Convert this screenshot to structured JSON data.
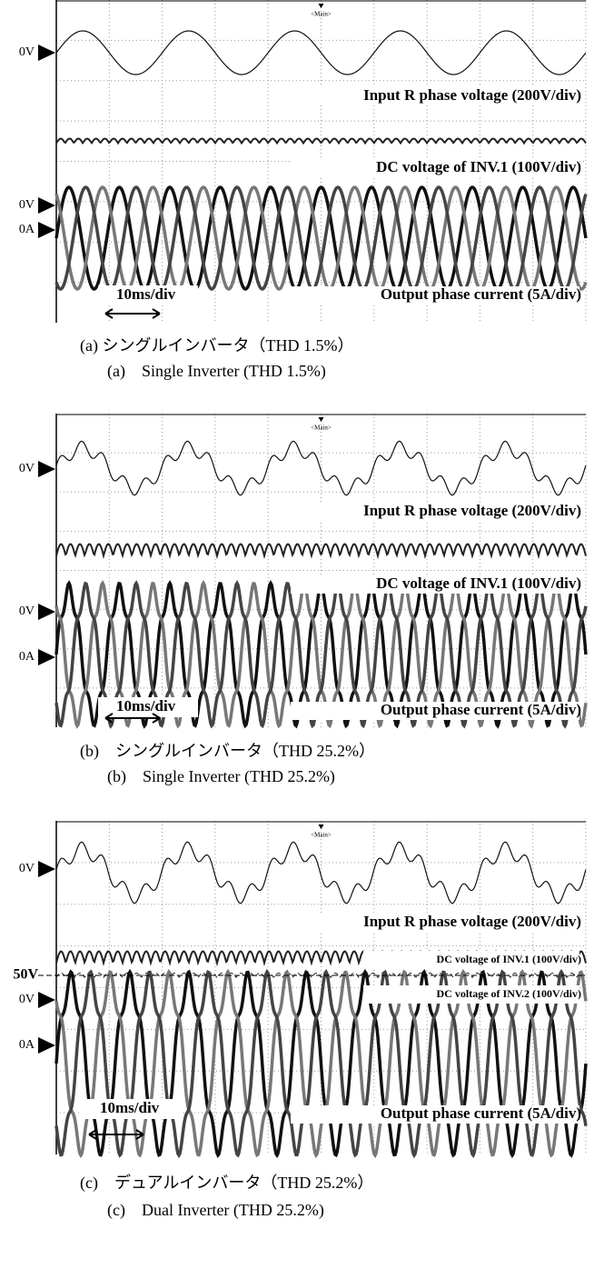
{
  "panels": [
    {
      "trigger_label": "<Main>",
      "markers": [
        "0V",
        "0V",
        "0A"
      ],
      "traces": [
        "Input R phase voltage (200V/div)",
        "DC voltage of INV.1 (100V/div)",
        "Output phase current (5A/div)"
      ],
      "timebase": "10ms/div",
      "caption_ja": "(a) シングルインバータ（THD 1.5%）",
      "caption_en": "(a)　Single Inverter (THD 1.5%)"
    },
    {
      "trigger_label": "<Main>",
      "markers": [
        "0V",
        "0V",
        "0A"
      ],
      "traces": [
        "Input R phase voltage (200V/div)",
        "DC voltage of INV.1 (100V/div)",
        "Output phase current (5A/div)"
      ],
      "timebase": "10ms/div",
      "caption_ja": "(b)　シングルインバータ（THD 25.2%）",
      "caption_en": "(b)　Single Inverter (THD 25.2%)"
    },
    {
      "trigger_label": "<Main>",
      "markers": [
        "0V",
        "50V",
        "0V",
        "0A"
      ],
      "traces": [
        "Input R phase voltage (200V/div)",
        "DC voltage of INV.1 (100V/div)",
        "DC voltage of INV.2 (100V/div)",
        "Output phase current (5A/div)"
      ],
      "timebase": "10ms/div",
      "caption_ja": "(c)　デュアルインバータ（THD 25.2%）",
      "caption_en": "(c)　Dual Inverter (THD 25.2%)"
    }
  ]
}
